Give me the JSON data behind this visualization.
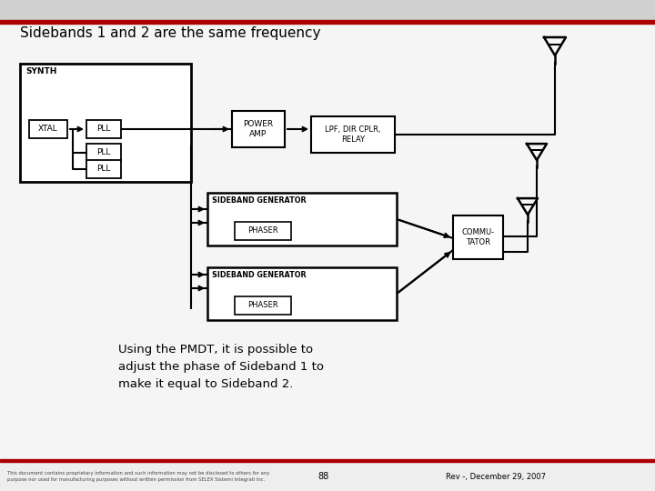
{
  "title": "Sidebands 1 and 2 are the same frequency",
  "title_fontsize": 11,
  "slide_bg": "#f5f5f5",
  "header_bar_color": "#d0d0d0",
  "red_bar_color": "#aa0000",
  "bottom_bg": "#eeeeee",
  "block_color": "#ffffff",
  "block_edge_color": "#000000",
  "text_color": "#000000",
  "annotation_text": "Using the PMDT, it is possible to\nadjust the phase of Sideband 1 to\nmake it equal to Sideband 2.",
  "annotation_fontsize": 9.5,
  "bottom_text_left": "This document contains proprietary information and such information may not be disclosed to others for any\npurpose nor used for manufacturing purposes without written permission from SELEX Sistemi Integrati Inc.",
  "page_number": "88",
  "rev_text": "Rev -, December 29, 2007"
}
